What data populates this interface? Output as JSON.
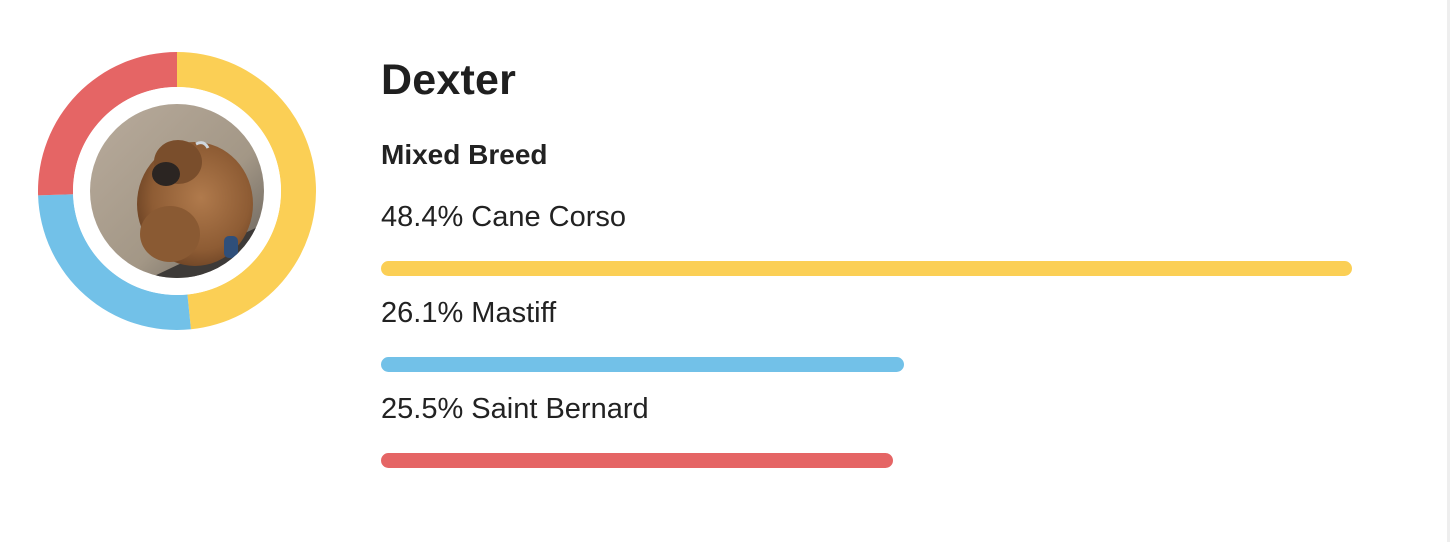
{
  "dog": {
    "name": "Dexter",
    "breed_type": "Mixed Breed"
  },
  "colors": {
    "cane_corso": "#fbcf55",
    "mastiff": "#72c1e8",
    "saint_bernard": "#e56565",
    "ring_bg": "#ffffff"
  },
  "breeds": [
    {
      "label": "48.4% Cane Corso",
      "name": "Cane Corso",
      "percent": 48.4,
      "color": "#fbcf55",
      "bar_fraction": 1.0
    },
    {
      "label": "26.1% Mastiff",
      "name": "Mastiff",
      "percent": 26.1,
      "color": "#72c1e8",
      "bar_fraction": 0.539
    },
    {
      "label": "25.5% Saint Bernard",
      "name": "Saint Bernard",
      "percent": 25.5,
      "color": "#e56565",
      "bar_fraction": 0.527
    }
  ],
  "chart_data": {
    "type": "pie",
    "categories": [
      "Cane Corso",
      "Mastiff",
      "Saint Bernard"
    ],
    "values": [
      48.4,
      26.1,
      25.5
    ],
    "title": "",
    "colors": [
      "#fbcf55",
      "#72c1e8",
      "#e56565"
    ]
  },
  "icons": {
    "photo": "dog-photo"
  }
}
